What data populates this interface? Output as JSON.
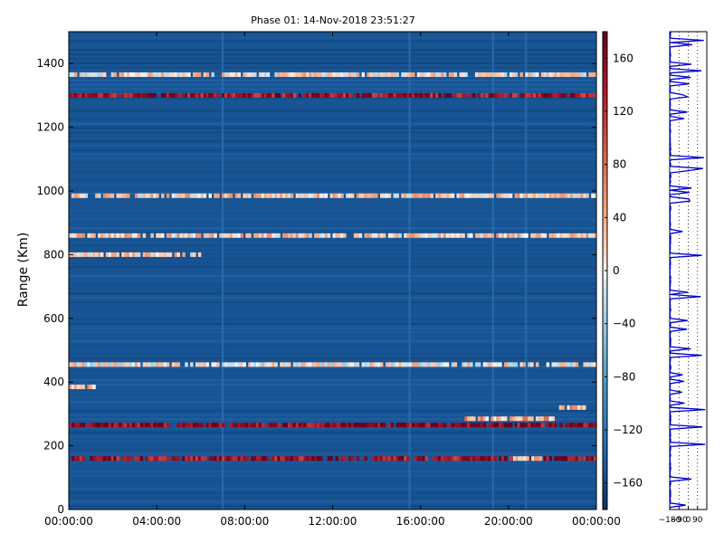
{
  "chart_data": [
    {
      "type": "heatmap",
      "title": "Phase 01: 14-Nov-2018 23:51:27",
      "xlabel": "",
      "ylabel": "Range (Km)",
      "x_ticks": [
        "00:00:00",
        "04:00:00",
        "08:00:00",
        "12:00:00",
        "16:00:00",
        "20:00:00",
        "00:00:00"
      ],
      "y_ticks": [
        0,
        200,
        400,
        600,
        800,
        1000,
        1200,
        1400
      ],
      "ylim": [
        0,
        1500
      ],
      "xlim_hours": [
        0,
        24
      ],
      "grid": false,
      "colormap": "RdBu_r",
      "background_value": -150,
      "horizontal_bands": [
        {
          "range_km": 1365,
          "value": 10,
          "span_hours": [
            0,
            24
          ]
        },
        {
          "range_km": 1300,
          "value": 150,
          "span_hours": [
            0,
            24
          ]
        },
        {
          "range_km": 985,
          "value": 20,
          "span_hours": [
            0,
            24
          ]
        },
        {
          "range_km": 860,
          "value": 20,
          "span_hours": [
            0,
            24
          ]
        },
        {
          "range_km": 800,
          "value": 15,
          "span_hours": [
            0,
            6
          ]
        },
        {
          "range_km": 455,
          "value": 5,
          "span_hours": [
            0,
            24
          ]
        },
        {
          "range_km": 385,
          "value": 20,
          "span_hours": [
            0,
            1.2
          ]
        },
        {
          "range_km": 265,
          "value": 160,
          "span_hours": [
            0,
            24
          ]
        },
        {
          "range_km": 160,
          "value": 150,
          "span_hours": [
            0,
            24
          ]
        },
        {
          "range_km": 160,
          "value": 30,
          "span_hours": [
            20.2,
            21.5
          ]
        },
        {
          "range_km": 285,
          "value": 40,
          "span_hours": [
            18,
            22
          ]
        },
        {
          "range_km": 320,
          "value": 40,
          "span_hours": [
            22.3,
            23.5
          ]
        }
      ],
      "vertical_stripes_hours": [
        7.0,
        15.5,
        19.3,
        20.8
      ]
    },
    {
      "type": "colorbar",
      "ticks": [
        160,
        120,
        80,
        40,
        0,
        -40,
        -80,
        -120,
        -160
      ],
      "range": [
        -180,
        180
      ],
      "colormap": "RdBu_r"
    },
    {
      "type": "line",
      "title": "",
      "xlabel": "",
      "ylabel": "",
      "x_ticks": [
        "-180",
        "-90",
        "0",
        "90"
      ],
      "xlim": [
        -180,
        180
      ],
      "ylim": [
        0,
        1500
      ],
      "color": "#0000cc",
      "note_visible": "profile of phase vs range, mostly near -180 with spikes toward +180"
    }
  ]
}
